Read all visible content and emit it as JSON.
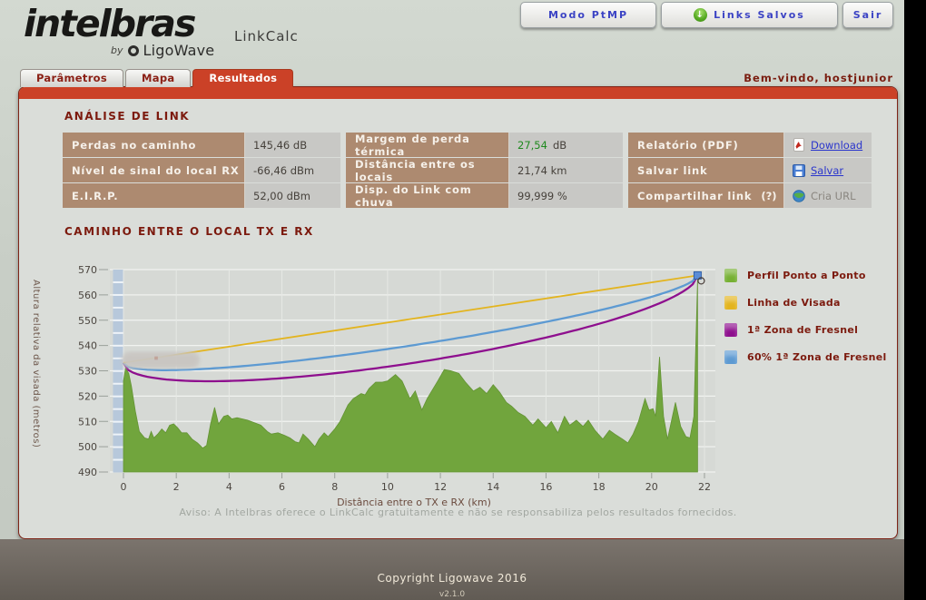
{
  "header": {
    "logo": {
      "word": "intelbras",
      "by": "by",
      "brand": "LigoWave"
    },
    "app_title": "LinkCalc",
    "buttons": [
      {
        "id": "modo-ptmp",
        "label": "Modo PtMP"
      },
      {
        "id": "links-salvos",
        "label": "Links Salvos",
        "icon": "green-down-arrow-icon"
      },
      {
        "id": "sair",
        "label": "Sair"
      }
    ],
    "welcome": "Bem-vindo, hostjunior"
  },
  "tabs": [
    {
      "label": "Parâmetros",
      "active": false
    },
    {
      "label": "Mapa",
      "active": false
    },
    {
      "label": "Resultados",
      "active": true
    }
  ],
  "analysis": {
    "title": "ANÁLISE DE LINK",
    "tables": [
      {
        "rows": [
          {
            "label": "Perdas no caminho",
            "value": "145,46 dB"
          },
          {
            "label": "Nível de sinal do local RX",
            "value": "-66,46 dBm"
          },
          {
            "label": "E.I.R.P.",
            "value": "52,00 dBm"
          }
        ]
      },
      {
        "rows": [
          {
            "label": "Margem de perda térmica",
            "value": "27,54",
            "unit": " dB",
            "value_color": "#1f8a1f"
          },
          {
            "label": "Distância entre os locais",
            "value": "21,74 km"
          },
          {
            "label": "Disp. do Link com chuva",
            "value": "99,999 %"
          }
        ]
      },
      {
        "rows": [
          {
            "label": "Relatório (PDF)",
            "value": "Download",
            "icon": "pdf-icon",
            "link": true
          },
          {
            "label": "Salvar link",
            "value": "Salvar",
            "icon": "save-icon",
            "link": true
          },
          {
            "label": "Compartilhar link",
            "help": "(?)",
            "value": "Cria URL",
            "icon": "globe-icon",
            "link": false
          }
        ]
      }
    ]
  },
  "chart_data": {
    "type": "area",
    "title": "CAMINHO ENTRE O LOCAL TX E RX",
    "xlabel": "Distância entre o TX e RX (km)",
    "ylabel": "Altura relativa da visada (metros)",
    "xlim": [
      0,
      22
    ],
    "ylim": [
      490,
      570
    ],
    "x_ticks": [
      0,
      2,
      4,
      6,
      8,
      10,
      12,
      14,
      16,
      18,
      20,
      22
    ],
    "y_ticks": [
      490,
      500,
      510,
      520,
      530,
      540,
      550,
      560,
      570
    ],
    "distance_km": 21.74,
    "los_line": {
      "label": "Linha de Visada",
      "color": "#e3b41e",
      "start_m": 533.2,
      "end_m": 567.7
    },
    "fresnel": {
      "label": "1ª Zona de Fresnel",
      "color": "#8e0f8e",
      "max_radius_m": 17.5
    },
    "fresnel60": {
      "label": "60% 1ª Zona de Fresnel",
      "color": "#5d9ad2",
      "fraction": 0.6
    },
    "terrain": {
      "label": "Perfil Ponto a Ponto",
      "color": "#71a53d",
      "points": [
        [
          0,
          526
        ],
        [
          0.08,
          531
        ],
        [
          0.2,
          529
        ],
        [
          0.3,
          524
        ],
        [
          0.45,
          514
        ],
        [
          0.6,
          506
        ],
        [
          0.8,
          503.5
        ],
        [
          0.95,
          503
        ],
        [
          1.05,
          506
        ],
        [
          1.15,
          503.5
        ],
        [
          1.3,
          505
        ],
        [
          1.45,
          507
        ],
        [
          1.6,
          505.5
        ],
        [
          1.75,
          508.5
        ],
        [
          1.9,
          509
        ],
        [
          2.05,
          507.5
        ],
        [
          2.2,
          505.5
        ],
        [
          2.4,
          505.5
        ],
        [
          2.6,
          503
        ],
        [
          2.8,
          501.5
        ],
        [
          3.0,
          499.5
        ],
        [
          3.15,
          500.5
        ],
        [
          3.3,
          509
        ],
        [
          3.45,
          515.5
        ],
        [
          3.6,
          509
        ],
        [
          3.8,
          512
        ],
        [
          3.95,
          512.5
        ],
        [
          4.1,
          511
        ],
        [
          4.3,
          511.5
        ],
        [
          4.5,
          511
        ],
        [
          4.7,
          510.5
        ],
        [
          4.95,
          509.5
        ],
        [
          5.2,
          508.5
        ],
        [
          5.45,
          506
        ],
        [
          5.6,
          505
        ],
        [
          5.85,
          505.5
        ],
        [
          6.1,
          504.5
        ],
        [
          6.3,
          503.5
        ],
        [
          6.5,
          502
        ],
        [
          6.65,
          501.5
        ],
        [
          6.8,
          505
        ],
        [
          7.0,
          503
        ],
        [
          7.25,
          500
        ],
        [
          7.4,
          503
        ],
        [
          7.6,
          505.5
        ],
        [
          7.75,
          504
        ],
        [
          8.0,
          507
        ],
        [
          8.2,
          510
        ],
        [
          8.5,
          516.5
        ],
        [
          8.7,
          519
        ],
        [
          9.0,
          521
        ],
        [
          9.15,
          520.5
        ],
        [
          9.3,
          523
        ],
        [
          9.55,
          525.5
        ],
        [
          9.8,
          525.5
        ],
        [
          10.0,
          526
        ],
        [
          10.3,
          528.5
        ],
        [
          10.55,
          526
        ],
        [
          10.85,
          519
        ],
        [
          11.05,
          522
        ],
        [
          11.3,
          514.5
        ],
        [
          11.5,
          519
        ],
        [
          11.9,
          526
        ],
        [
          12.15,
          530.5
        ],
        [
          12.4,
          530
        ],
        [
          12.7,
          529
        ],
        [
          12.95,
          525.5
        ],
        [
          13.25,
          522
        ],
        [
          13.5,
          523.5
        ],
        [
          13.75,
          521
        ],
        [
          14.0,
          524.5
        ],
        [
          14.25,
          521.5
        ],
        [
          14.5,
          517.5
        ],
        [
          14.7,
          516
        ],
        [
          14.95,
          513.5
        ],
        [
          15.2,
          512
        ],
        [
          15.5,
          508.5
        ],
        [
          15.7,
          511
        ],
        [
          16.0,
          507.5
        ],
        [
          16.2,
          510
        ],
        [
          16.45,
          505.5
        ],
        [
          16.7,
          512
        ],
        [
          16.9,
          508.5
        ],
        [
          17.15,
          510.5
        ],
        [
          17.4,
          508
        ],
        [
          17.6,
          510.5
        ],
        [
          17.85,
          506.5
        ],
        [
          18.15,
          503
        ],
        [
          18.4,
          506.5
        ],
        [
          18.6,
          505
        ],
        [
          18.9,
          503
        ],
        [
          19.1,
          501.5
        ],
        [
          19.3,
          505
        ],
        [
          19.5,
          510
        ],
        [
          19.75,
          519
        ],
        [
          19.9,
          514.5
        ],
        [
          20.05,
          515
        ],
        [
          20.15,
          512
        ],
        [
          20.3,
          535.5
        ],
        [
          20.45,
          512
        ],
        [
          20.6,
          503
        ],
        [
          20.9,
          517.5
        ],
        [
          21.1,
          508
        ],
        [
          21.3,
          504
        ],
        [
          21.45,
          503.5
        ],
        [
          21.6,
          512
        ],
        [
          21.74,
          566
        ]
      ]
    },
    "legend": [
      {
        "label": "Perfil Ponto a Ponto",
        "color": "#76b033"
      },
      {
        "label": "Linha de Visada",
        "color": "#e3b41e"
      },
      {
        "label": "1ª Zona de Fresnel",
        "color": "#8e0f8e"
      },
      {
        "label": "60% 1ª Zona de Fresnel",
        "color": "#5d9ad2"
      }
    ]
  },
  "notice": "Aviso: A Intelbras oferece o LinkCalc gratuitamente e não se responsabiliza pelos resultados fornecidos.",
  "footer": {
    "copyright": "Copyright Ligowave 2016",
    "version": "v2.1.0"
  }
}
